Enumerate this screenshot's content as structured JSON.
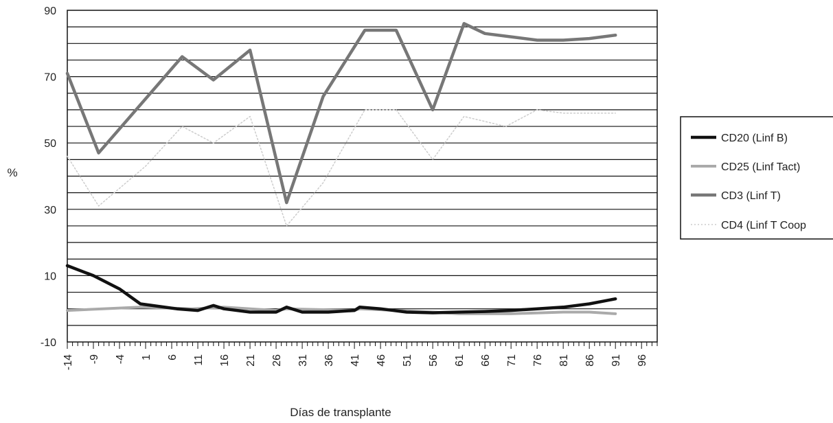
{
  "chart_data": {
    "type": "line",
    "xlabel": "Días de transplante",
    "ylabel": "%",
    "ylim": [
      -10,
      90
    ],
    "yticks": [
      -10,
      10,
      30,
      50,
      70,
      90
    ],
    "y_gridline_step": 5,
    "xlim": [
      -14,
      99
    ],
    "xticks": [
      -14,
      -9,
      -4,
      1,
      6,
      11,
      16,
      21,
      26,
      31,
      36,
      41,
      46,
      51,
      56,
      61,
      66,
      71,
      76,
      81,
      86,
      91,
      96
    ],
    "grid": "horizontal",
    "legend_position": "right",
    "series": [
      {
        "name": "CD20 (Linf B)",
        "color": "#111111",
        "x": [
          -14,
          -9,
          -4,
          0,
          7,
          11,
          14,
          16,
          21,
          26,
          28,
          31,
          36,
          41,
          42,
          46,
          51,
          56,
          61,
          66,
          71,
          76,
          81,
          86,
          91
        ],
        "y": [
          13,
          10,
          6,
          1.5,
          0,
          -0.5,
          1,
          0,
          -1,
          -1,
          0.5,
          -1,
          -1,
          -0.5,
          0.5,
          0,
          -1,
          -1.2,
          -1,
          -0.8,
          -0.5,
          0,
          0.5,
          1.5,
          3
        ]
      },
      {
        "name": "CD25 (Linf Tact)",
        "color": "#aaaaaa",
        "x": [
          -14,
          0,
          10,
          16,
          26,
          28,
          41,
          42,
          56,
          61,
          71,
          81,
          86,
          91
        ],
        "y": [
          -0.5,
          0.5,
          0,
          0.5,
          -0.5,
          0,
          -0.5,
          0,
          -1,
          -1.5,
          -1.5,
          -1,
          -1,
          -1.5
        ]
      },
      {
        "name": "CD3 (Linf T)",
        "color": "#777777",
        "x": [
          -14,
          -8,
          8,
          14,
          21,
          28,
          35,
          43,
          49,
          56,
          62,
          66,
          71,
          76,
          81,
          86,
          91
        ],
        "y": [
          71,
          47,
          76,
          69,
          78,
          32,
          64,
          84,
          84,
          60,
          86,
          83,
          82,
          81,
          81,
          81.5,
          82.5
        ]
      },
      {
        "name": "CD4 (Linf T Coop",
        "color": "#cccccc",
        "x": [
          -14,
          -8,
          1,
          8,
          14,
          21,
          28,
          35,
          43,
          49,
          56,
          62,
          70,
          76,
          81,
          86,
          91
        ],
        "y": [
          46,
          31,
          43,
          55,
          50,
          58,
          25,
          38,
          60,
          60,
          45,
          58,
          55,
          60,
          59,
          59,
          59
        ]
      }
    ]
  }
}
